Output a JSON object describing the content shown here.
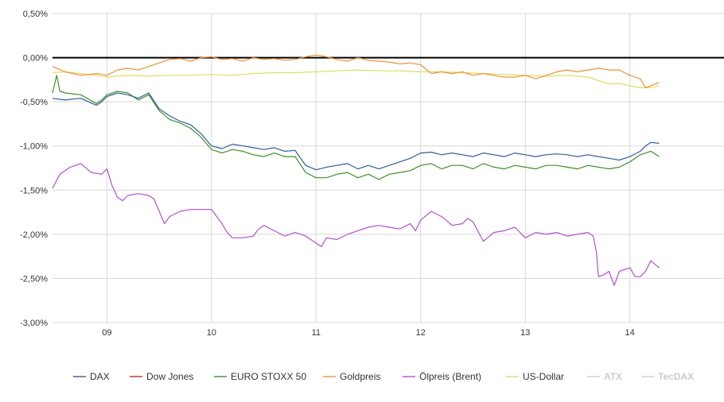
{
  "chart_data": {
    "type": "line",
    "title": "",
    "xlabel": "",
    "ylabel": "",
    "x_unit": "day",
    "xlim": [
      8.48,
      14.9
    ],
    "ylim": [
      -3.0,
      0.5
    ],
    "y_ticks": [
      0.5,
      0.0,
      -0.5,
      -1.0,
      -1.5,
      -2.0,
      -2.5,
      -3.0
    ],
    "y_tick_labels": [
      "0,50%",
      "0,00%",
      "-0,50%",
      "-1,00%",
      "-1,50%",
      "-2,00%",
      "-2,50%",
      "-3,00%"
    ],
    "x_ticks": [
      9,
      10,
      11,
      12,
      13,
      14
    ],
    "x_tick_labels": [
      "09",
      "10",
      "11",
      "12",
      "13",
      "14"
    ],
    "grid": true,
    "zero_line": true,
    "legend_position": "bottom",
    "series": [
      {
        "name": "DAX",
        "color": "#2f5f98",
        "visible": true,
        "x": [
          8.48,
          8.6,
          8.75,
          8.9,
          8.95,
          9.0,
          9.1,
          9.2,
          9.3,
          9.4,
          9.5,
          9.6,
          9.7,
          9.8,
          9.9,
          10.0,
          10.1,
          10.2,
          10.3,
          10.4,
          10.5,
          10.6,
          10.7,
          10.8,
          10.9,
          11.0,
          11.1,
          11.2,
          11.3,
          11.4,
          11.5,
          11.6,
          11.7,
          11.8,
          11.9,
          12.0,
          12.1,
          12.2,
          12.3,
          12.4,
          12.5,
          12.6,
          12.7,
          12.8,
          12.9,
          13.0,
          13.1,
          13.2,
          13.3,
          13.4,
          13.5,
          13.6,
          13.7,
          13.8,
          13.9,
          14.0,
          14.1,
          14.15,
          14.2,
          14.28
        ],
        "values": [
          -0.46,
          -0.48,
          -0.46,
          -0.54,
          -0.5,
          -0.44,
          -0.4,
          -0.42,
          -0.46,
          -0.4,
          -0.58,
          -0.66,
          -0.72,
          -0.76,
          -0.86,
          -1.0,
          -1.03,
          -0.98,
          -1.0,
          -1.02,
          -1.04,
          -1.02,
          -1.06,
          -1.05,
          -1.22,
          -1.27,
          -1.24,
          -1.22,
          -1.2,
          -1.26,
          -1.22,
          -1.26,
          -1.22,
          -1.18,
          -1.14,
          -1.08,
          -1.07,
          -1.1,
          -1.08,
          -1.1,
          -1.12,
          -1.08,
          -1.1,
          -1.12,
          -1.08,
          -1.1,
          -1.12,
          -1.1,
          -1.09,
          -1.1,
          -1.12,
          -1.1,
          -1.12,
          -1.14,
          -1.16,
          -1.12,
          -1.06,
          -1.0,
          -0.96,
          -0.97
        ]
      },
      {
        "name": "Dow Jones",
        "color": "#c02a2a",
        "visible": true,
        "x": [],
        "values": []
      },
      {
        "name": "EURO STOXX 50",
        "color": "#3f8f2a",
        "visible": true,
        "x": [
          8.48,
          8.52,
          8.55,
          8.6,
          8.75,
          8.9,
          8.95,
          9.0,
          9.1,
          9.2,
          9.3,
          9.4,
          9.5,
          9.6,
          9.7,
          9.8,
          9.9,
          10.0,
          10.1,
          10.2,
          10.3,
          10.4,
          10.5,
          10.6,
          10.7,
          10.8,
          10.9,
          11.0,
          11.1,
          11.2,
          11.3,
          11.4,
          11.5,
          11.6,
          11.7,
          11.8,
          11.9,
          12.0,
          12.1,
          12.2,
          12.3,
          12.4,
          12.5,
          12.6,
          12.7,
          12.8,
          12.9,
          13.0,
          13.1,
          13.2,
          13.3,
          13.4,
          13.5,
          13.6,
          13.7,
          13.8,
          13.9,
          14.0,
          14.1,
          14.15,
          14.2,
          14.28
        ],
        "values": [
          -0.4,
          -0.2,
          -0.38,
          -0.4,
          -0.42,
          -0.52,
          -0.48,
          -0.42,
          -0.38,
          -0.4,
          -0.48,
          -0.42,
          -0.6,
          -0.7,
          -0.74,
          -0.8,
          -0.9,
          -1.04,
          -1.08,
          -1.04,
          -1.06,
          -1.1,
          -1.12,
          -1.08,
          -1.12,
          -1.12,
          -1.3,
          -1.36,
          -1.36,
          -1.32,
          -1.3,
          -1.36,
          -1.32,
          -1.38,
          -1.32,
          -1.3,
          -1.28,
          -1.22,
          -1.2,
          -1.26,
          -1.22,
          -1.22,
          -1.26,
          -1.2,
          -1.24,
          -1.26,
          -1.22,
          -1.24,
          -1.26,
          -1.22,
          -1.22,
          -1.24,
          -1.26,
          -1.22,
          -1.24,
          -1.26,
          -1.24,
          -1.18,
          -1.1,
          -1.08,
          -1.06,
          -1.12
        ]
      },
      {
        "name": "Goldpreis",
        "color": "#f0913a",
        "visible": true,
        "x": [
          8.48,
          8.6,
          8.75,
          8.9,
          9.0,
          9.1,
          9.2,
          9.3,
          9.4,
          9.5,
          9.6,
          9.7,
          9.8,
          9.9,
          10.0,
          10.1,
          10.2,
          10.3,
          10.4,
          10.5,
          10.6,
          10.7,
          10.8,
          10.9,
          11.0,
          11.1,
          11.2,
          11.3,
          11.4,
          11.5,
          11.6,
          11.7,
          11.8,
          11.9,
          12.0,
          12.1,
          12.2,
          12.3,
          12.4,
          12.5,
          12.6,
          12.7,
          12.8,
          12.9,
          13.0,
          13.1,
          13.2,
          13.3,
          13.4,
          13.5,
          13.6,
          13.7,
          13.8,
          13.9,
          14.0,
          14.1,
          14.15,
          14.2,
          14.28
        ],
        "values": [
          -0.1,
          -0.16,
          -0.2,
          -0.18,
          -0.2,
          -0.14,
          -0.12,
          -0.14,
          -0.1,
          -0.06,
          -0.02,
          -0.01,
          -0.04,
          0.0,
          0.01,
          -0.02,
          -0.01,
          -0.04,
          0.0,
          -0.02,
          -0.01,
          -0.03,
          -0.02,
          0.01,
          0.03,
          0.01,
          -0.02,
          -0.04,
          0.0,
          -0.03,
          -0.04,
          -0.05,
          -0.07,
          -0.06,
          -0.08,
          -0.18,
          -0.16,
          -0.18,
          -0.16,
          -0.2,
          -0.18,
          -0.2,
          -0.22,
          -0.22,
          -0.2,
          -0.24,
          -0.2,
          -0.16,
          -0.14,
          -0.16,
          -0.14,
          -0.12,
          -0.14,
          -0.14,
          -0.2,
          -0.24,
          -0.34,
          -0.32,
          -0.28
        ]
      },
      {
        "name": "Ölpreis (Brent)",
        "color": "#b54fd0",
        "visible": true,
        "x": [
          8.48,
          8.55,
          8.65,
          8.75,
          8.85,
          8.95,
          9.0,
          9.05,
          9.1,
          9.15,
          9.2,
          9.3,
          9.4,
          9.45,
          9.5,
          9.55,
          9.6,
          9.7,
          9.8,
          9.9,
          10.0,
          10.1,
          10.15,
          10.2,
          10.3,
          10.4,
          10.45,
          10.5,
          10.6,
          10.7,
          10.8,
          10.9,
          11.0,
          11.05,
          11.1,
          11.2,
          11.3,
          11.4,
          11.5,
          11.6,
          11.7,
          11.8,
          11.9,
          11.95,
          12.0,
          12.1,
          12.2,
          12.3,
          12.4,
          12.45,
          12.5,
          12.6,
          12.7,
          12.8,
          12.9,
          13.0,
          13.1,
          13.2,
          13.3,
          13.4,
          13.5,
          13.6,
          13.65,
          13.68,
          13.7,
          13.75,
          13.8,
          13.85,
          13.9,
          14.0,
          14.05,
          14.1,
          14.15,
          14.2,
          14.28
        ],
        "values": [
          -1.48,
          -1.32,
          -1.24,
          -1.2,
          -1.3,
          -1.32,
          -1.26,
          -1.45,
          -1.58,
          -1.62,
          -1.56,
          -1.54,
          -1.56,
          -1.6,
          -1.74,
          -1.88,
          -1.8,
          -1.74,
          -1.72,
          -1.72,
          -1.72,
          -1.88,
          -1.98,
          -2.04,
          -2.04,
          -2.02,
          -1.94,
          -1.9,
          -1.96,
          -2.02,
          -1.98,
          -2.02,
          -2.1,
          -2.14,
          -2.04,
          -2.06,
          -2.0,
          -1.96,
          -1.92,
          -1.9,
          -1.92,
          -1.94,
          -1.88,
          -1.96,
          -1.84,
          -1.74,
          -1.8,
          -1.9,
          -1.88,
          -1.82,
          -1.86,
          -2.08,
          -1.98,
          -1.96,
          -1.92,
          -2.04,
          -1.98,
          -2.0,
          -1.98,
          -2.02,
          -2.0,
          -1.98,
          -2.02,
          -2.2,
          -2.48,
          -2.46,
          -2.42,
          -2.58,
          -2.42,
          -2.38,
          -2.48,
          -2.48,
          -2.42,
          -2.3,
          -2.38
        ]
      },
      {
        "name": "US-Dollar",
        "color": "#e0dc60",
        "visible": true,
        "x": [
          8.48,
          8.6,
          8.75,
          8.9,
          9.0,
          9.2,
          9.4,
          9.6,
          9.8,
          10.0,
          10.2,
          10.4,
          10.6,
          10.8,
          11.0,
          11.2,
          11.4,
          11.6,
          11.8,
          12.0,
          12.2,
          12.4,
          12.6,
          12.8,
          13.0,
          13.2,
          13.4,
          13.6,
          13.7,
          13.8,
          13.9,
          14.0,
          14.1,
          14.2,
          14.28
        ],
        "values": [
          -0.17,
          -0.16,
          -0.18,
          -0.2,
          -0.22,
          -0.2,
          -0.21,
          -0.2,
          -0.2,
          -0.19,
          -0.2,
          -0.18,
          -0.17,
          -0.17,
          -0.16,
          -0.15,
          -0.14,
          -0.15,
          -0.15,
          -0.16,
          -0.16,
          -0.17,
          -0.18,
          -0.19,
          -0.2,
          -0.21,
          -0.2,
          -0.22,
          -0.26,
          -0.3,
          -0.29,
          -0.32,
          -0.34,
          -0.34,
          -0.32
        ]
      },
      {
        "name": "ATX",
        "color": "#cccccc",
        "visible": false,
        "x": [],
        "values": []
      },
      {
        "name": "TecDAX",
        "color": "#cccccc",
        "visible": false,
        "x": [],
        "values": []
      }
    ]
  }
}
